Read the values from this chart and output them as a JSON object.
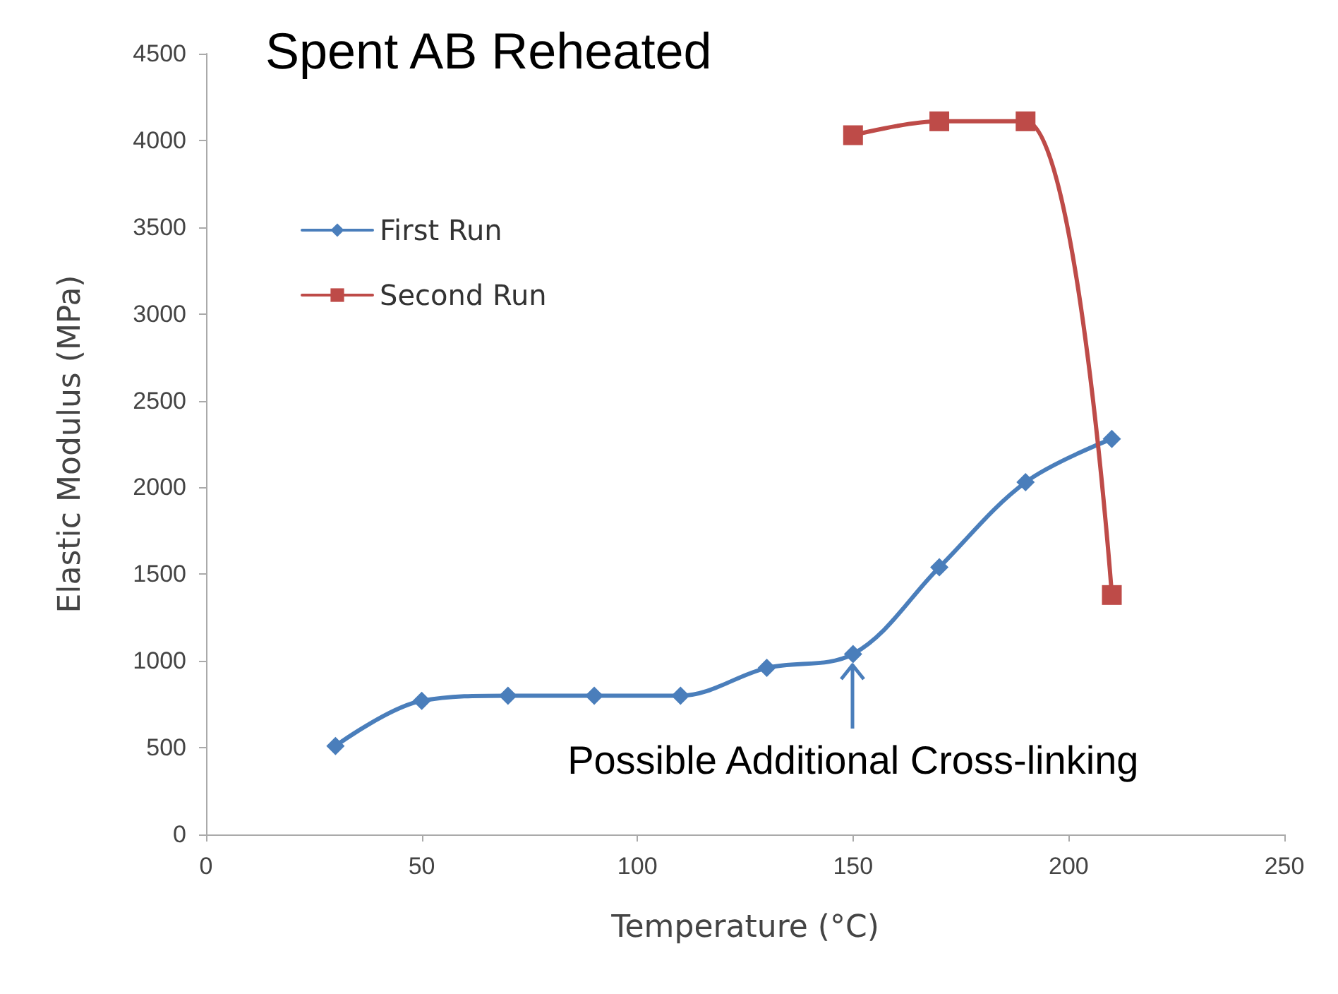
{
  "chart_data": {
    "type": "line",
    "title": "Spent AB Reheated",
    "xlabel": "Temperature (°C)",
    "ylabel": "Elastic Modulus (MPa)",
    "xlim": [
      0,
      250
    ],
    "xticks": [
      0,
      50,
      100,
      150,
      200,
      250
    ],
    "ylim": [
      0,
      4500
    ],
    "yticks": [
      0,
      500,
      1000,
      1500,
      2000,
      2500,
      3000,
      3500,
      4000,
      4500
    ],
    "grid": false,
    "legend": "top left",
    "series": [
      {
        "name": "First Run",
        "color": "#4a7ebb",
        "marker": "diamond",
        "x": [
          30,
          50,
          70,
          90,
          110,
          130,
          150,
          170,
          190,
          210
        ],
        "values": [
          510,
          770,
          800,
          800,
          800,
          960,
          1040,
          1540,
          2030,
          2280
        ]
      },
      {
        "name": "Second Run",
        "color": "#be4b48",
        "marker": "square",
        "x": [
          150,
          170,
          190,
          210
        ],
        "values": [
          4030,
          4110,
          4110,
          1380
        ]
      }
    ],
    "annotations": [
      {
        "text": "Possible Additional Cross-linking",
        "x": 150,
        "y": 1040
      }
    ]
  }
}
